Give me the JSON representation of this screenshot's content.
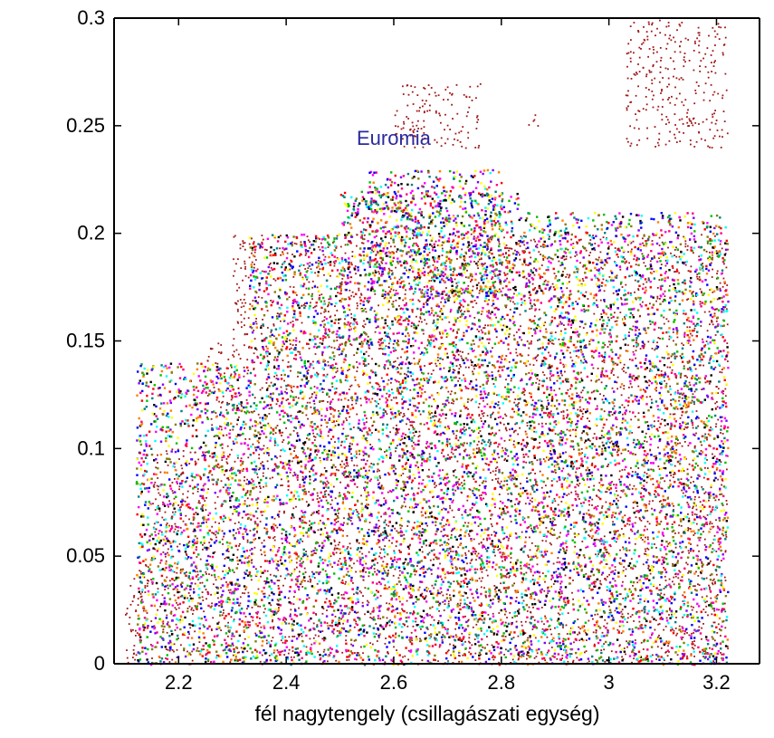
{
  "chart_data": {
    "type": "scatter",
    "title": "",
    "xlabel": "fél nagytengely (csillagászati egység)",
    "ylabel": "",
    "xlim": [
      2.08,
      3.28
    ],
    "ylim": [
      0,
      0.3
    ],
    "x_ticks": [
      {
        "value": 2.2,
        "label": "2.2"
      },
      {
        "value": 2.4,
        "label": "2.4"
      },
      {
        "value": 2.6,
        "label": "2.6"
      },
      {
        "value": 2.8,
        "label": "2.8"
      },
      {
        "value": 3.0,
        "label": "3"
      },
      {
        "value": 3.2,
        "label": "3.2"
      }
    ],
    "y_ticks": [
      {
        "value": 0,
        "label": "0"
      },
      {
        "value": 0.05,
        "label": "0.05"
      },
      {
        "value": 0.1,
        "label": "0.1"
      },
      {
        "value": 0.15,
        "label": "0.15"
      },
      {
        "value": 0.2,
        "label": "0.2"
      },
      {
        "value": 0.25,
        "label": "0.25"
      },
      {
        "value": 0.3,
        "label": "0.3"
      }
    ],
    "grid": false,
    "annotations": [
      {
        "text": "Euromia",
        "x": 2.6,
        "y": 0.241,
        "color": "#2a2aa0"
      }
    ],
    "series": [
      {
        "kind": "background",
        "color": "#a01818",
        "regions": [
          {
            "a": [
              2.1,
              3.22
            ],
            "e": [
              0.0,
              0.05
            ]
          },
          {
            "a": [
              2.15,
              3.22
            ],
            "e": [
              0.05,
              0.1
            ]
          },
          {
            "a": [
              2.25,
              3.22
            ],
            "e": [
              0.1,
              0.15
            ]
          },
          {
            "a": [
              2.3,
              3.22
            ],
            "e": [
              0.15,
              0.2
            ]
          },
          {
            "a": [
              2.6,
              2.76
            ],
            "e": [
              0.24,
              0.27
            ]
          },
          {
            "a": [
              3.03,
              3.22
            ],
            "e": [
              0.24,
              0.3
            ]
          },
          {
            "a": [
              2.85,
              2.87
            ],
            "e": [
              0.25,
              0.26
            ]
          }
        ]
      },
      {
        "kind": "families",
        "palette": [
          "#ff0000",
          "#00c000",
          "#0000ff",
          "#ff00ff",
          "#00ffff",
          "#ffff00",
          "#000000",
          "#ff8000",
          "#8000ff",
          "#008080",
          "#808000",
          "#ff0080"
        ],
        "regions": [
          {
            "a": [
              2.12,
              2.5
            ],
            "e": [
              0.0,
              0.14
            ]
          },
          {
            "a": [
              2.33,
              2.5
            ],
            "e": [
              0.14,
              0.2
            ]
          },
          {
            "a": [
              2.5,
              2.83
            ],
            "e": [
              0.0,
              0.22
            ]
          },
          {
            "a": [
              2.83,
              3.22
            ],
            "e": [
              0.0,
              0.21
            ]
          },
          {
            "a": [
              2.55,
              2.8
            ],
            "e": [
              0.17,
              0.23
            ]
          }
        ]
      }
    ]
  }
}
